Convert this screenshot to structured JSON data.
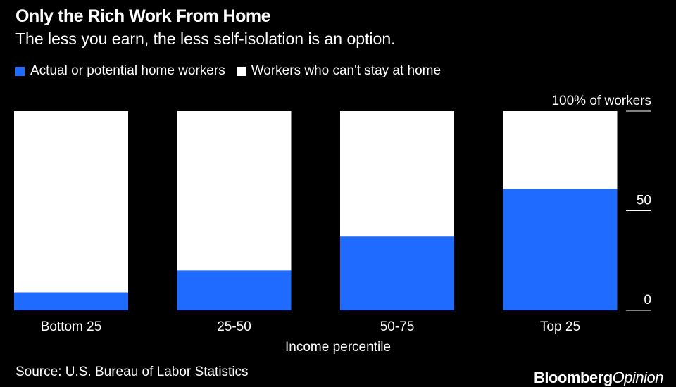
{
  "title": "Only the Rich Work From Home",
  "subtitle": "The less you earn, the less self-isolation is an option.",
  "legend": [
    {
      "label": "Actual or potential home workers",
      "color": "#1F6BFF"
    },
    {
      "label": "Workers who can't stay at home",
      "color": "#FFFFFF"
    }
  ],
  "source": "Source: U.S. Bureau of Labor Statistics",
  "brand": {
    "part1": "Bloomberg",
    "part2": "Opinion"
  },
  "chart_data": {
    "type": "bar",
    "stacked": true,
    "categories": [
      "Bottom 25",
      "25-50",
      "50-75",
      "Top 25"
    ],
    "series": [
      {
        "name": "Actual or potential home workers",
        "values": [
          9,
          20,
          37,
          61
        ],
        "color": "#1F6BFF"
      },
      {
        "name": "Workers who can't stay at home",
        "values": [
          91,
          80,
          63,
          39
        ],
        "color": "#FFFFFF"
      }
    ],
    "xlabel": "Income percentile",
    "ylabel": "",
    "ylim": [
      0,
      100
    ],
    "yticks": [
      {
        "value": 100,
        "label": "100% of workers"
      },
      {
        "value": 50,
        "label": "50"
      },
      {
        "value": 0,
        "label": "0"
      }
    ],
    "legend_position": "top-left",
    "grid": false
  }
}
